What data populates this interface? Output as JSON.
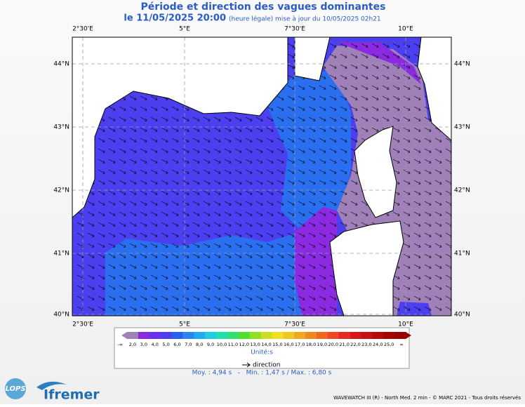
{
  "header": {
    "title": "Période et direction des vagues dominantes",
    "date": "le 11/05/2025 20:00",
    "note": "(heure légale) mise à jour du 10/05/2025 02h21"
  },
  "axes": {
    "lon": [
      "2°30'E",
      "5°E",
      "7°30'E",
      "10°E"
    ],
    "lat": [
      "44°N",
      "43°N",
      "42°N",
      "41°N",
      "40°N"
    ]
  },
  "colorbar": {
    "labels": [
      "-∞",
      "2,0",
      "3,0",
      "4,0",
      "5,0",
      "6,0",
      "7,0",
      "8,0",
      "9,0",
      "10,0",
      "11,0",
      "12,0",
      "13,0",
      "14,0",
      "15,0",
      "16,0",
      "17,0",
      "18,0",
      "19,0",
      "20,0",
      "21,0",
      "22,0",
      "23,0",
      "24,0",
      "25,0",
      "∞"
    ],
    "colors": [
      "#a080b8",
      "#8a2be2",
      "#6a30f0",
      "#4b3ff0",
      "#2a5ff0",
      "#2a85f0",
      "#20aaf0",
      "#20cce0",
      "#20e0b0",
      "#30e070",
      "#50e030",
      "#90e020",
      "#c8e020",
      "#f0e020",
      "#f0c820",
      "#f0a820",
      "#f08820",
      "#f06820",
      "#f04820",
      "#e82820",
      "#d81818",
      "#c81010",
      "#b80808",
      "#a80000",
      "#980000"
    ],
    "unit": "Unité:s",
    "direction": "direction"
  },
  "stats": "Moy. : 4,94 s   -   Min. : 1,47 s / Max. : 6,80 s",
  "footer": "WAVEWATCH III (R) - North Med. 2 min - © MARC 2021 - Tous droits réservés",
  "logos": {
    "lops": "LOPS",
    "ifremer": "Ifremer"
  }
}
